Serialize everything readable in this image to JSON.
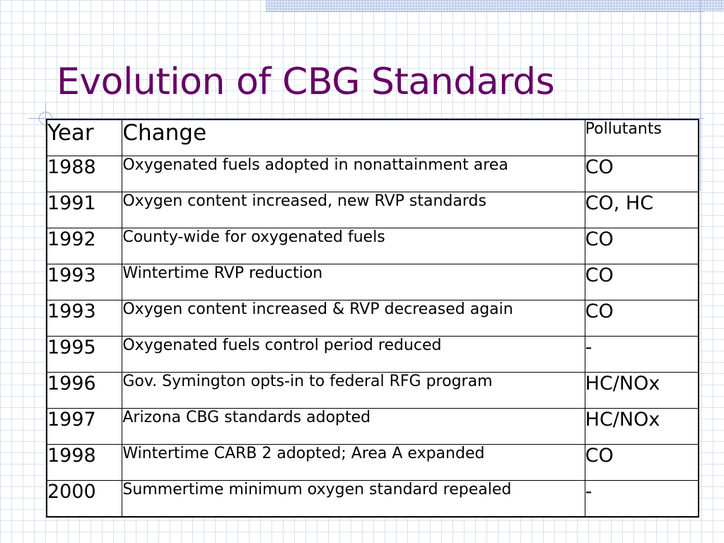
{
  "slide": {
    "title": "Evolution of CBG Standards"
  },
  "table": {
    "headers": {
      "year": "Year",
      "change": "Change",
      "pollutants": "Pollutants"
    },
    "rows": [
      {
        "year": "1988",
        "change": "Oxygenated fuels adopted in nonattainment area",
        "pollutants": "CO"
      },
      {
        "year": "1991",
        "change": "Oxygen content increased, new RVP standards",
        "pollutants": "CO, HC"
      },
      {
        "year": "1992",
        "change": "County-wide for oxygenated fuels",
        "pollutants": "CO"
      },
      {
        "year": "1993",
        "change": "Wintertime RVP reduction",
        "pollutants": "CO"
      },
      {
        "year": "1993",
        "change": "Oxygen content increased & RVP decreased again",
        "pollutants": "CO"
      },
      {
        "year": "1995",
        "change": "Oxygenated fuels control period reduced",
        "pollutants": "-"
      },
      {
        "year": "1996",
        "change": "Gov. Symington opts-in to federal RFG program",
        "pollutants": "HC/NOx"
      },
      {
        "year": "1997",
        "change": "Arizona CBG standards adopted",
        "pollutants": "HC/NOx"
      },
      {
        "year": "1998",
        "change": "Wintertime CARB 2 adopted; Area A expanded",
        "pollutants": "CO"
      },
      {
        "year": "2000",
        "change": "Summertime minimum oxygen standard repealed",
        "pollutants": "-"
      }
    ]
  },
  "colors": {
    "title": "#660066",
    "grid": "#d9e2f1",
    "accent_lines": "#9fb0d6"
  }
}
